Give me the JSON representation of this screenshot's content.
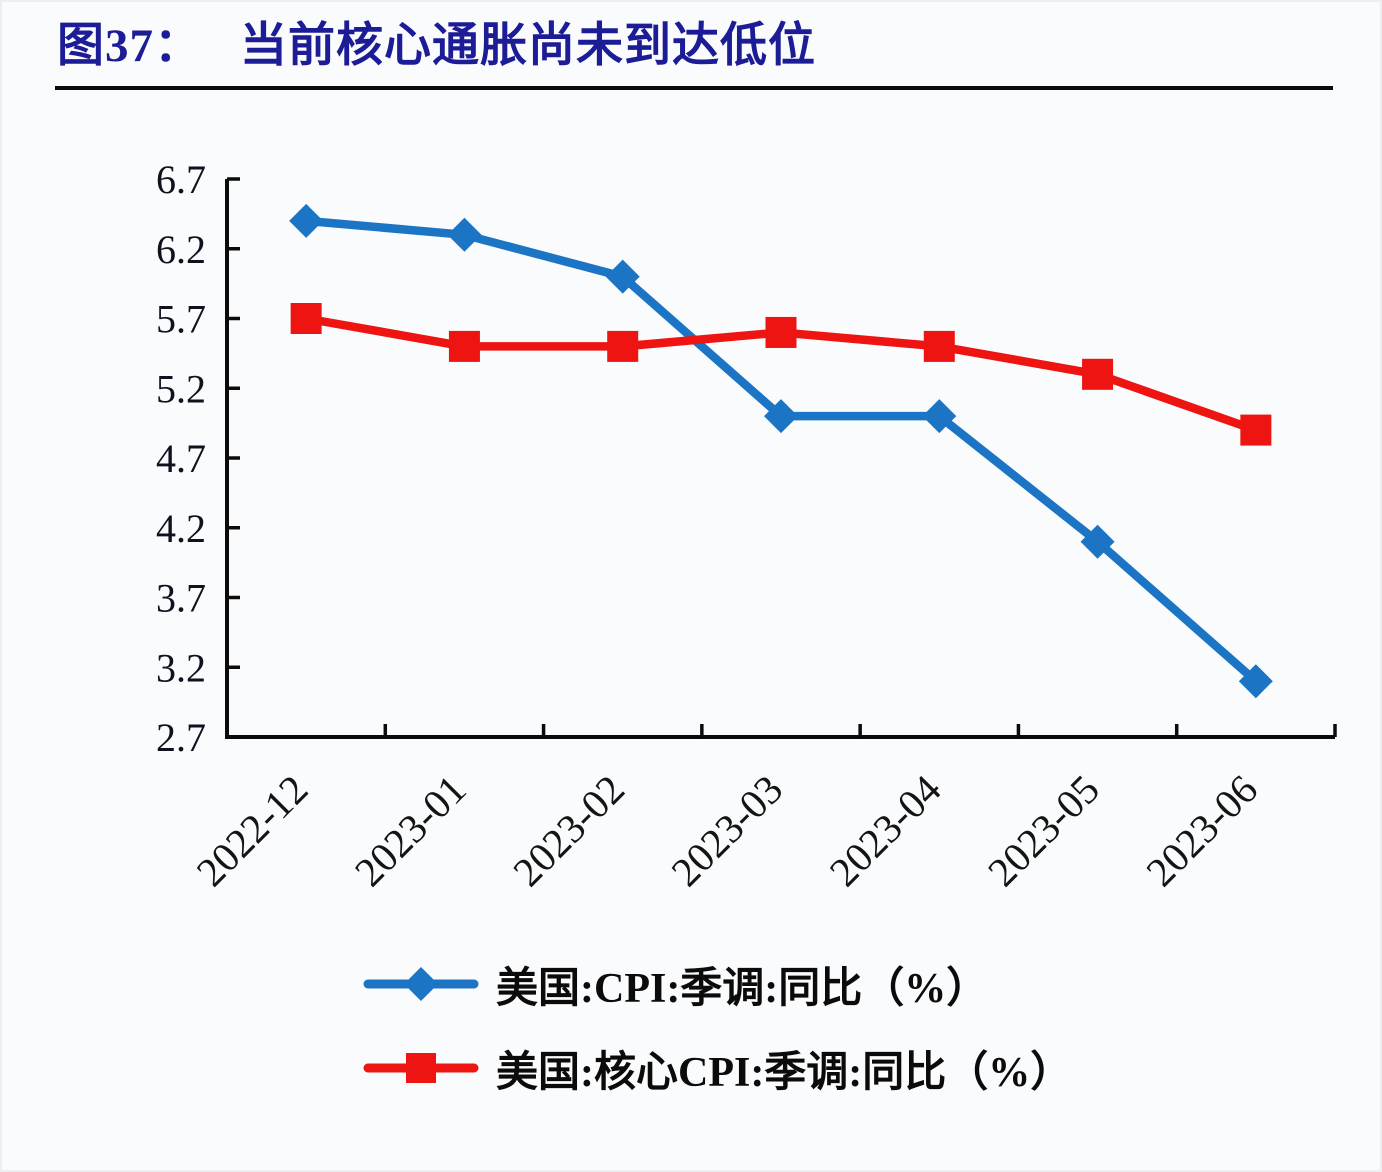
{
  "figure": {
    "title_prefix": "图37：",
    "title": "当前核心通胀尚未到达低位"
  },
  "colors": {
    "title": "#1c1c96",
    "axis": "#0b0b0b",
    "cpi_line": "#1b74c4",
    "core_cpi_line": "#ee1411",
    "background": "#fafbfc"
  },
  "chart_data": {
    "type": "line",
    "title": "当前核心通胀尚未到达低位",
    "categories": [
      "2022-12",
      "2023-01",
      "2023-02",
      "2023-03",
      "2023-04",
      "2023-05",
      "2023-06"
    ],
    "series": [
      {
        "name": "美国:CPI:季调:同比（%）",
        "color": "#1b74c4",
        "marker": "diamond",
        "values": [
          6.4,
          6.3,
          6.0,
          5.0,
          5.0,
          4.1,
          3.1
        ]
      },
      {
        "name": "美国:核心CPI:季调:同比（%）",
        "color": "#ee1411",
        "marker": "square",
        "values": [
          5.7,
          5.5,
          5.5,
          5.6,
          5.5,
          5.3,
          4.9
        ]
      }
    ],
    "xlabel": "",
    "ylabel": "",
    "ylim": [
      2.7,
      6.7
    ],
    "ytick_step": 0.5,
    "ytick_labels": [
      "2.7",
      "3.2",
      "3.7",
      "4.2",
      "4.7",
      "5.2",
      "5.7",
      "6.2",
      "6.7"
    ],
    "xtick_rotation_deg": -45,
    "grid": false,
    "legend_position": "bottom-left"
  }
}
